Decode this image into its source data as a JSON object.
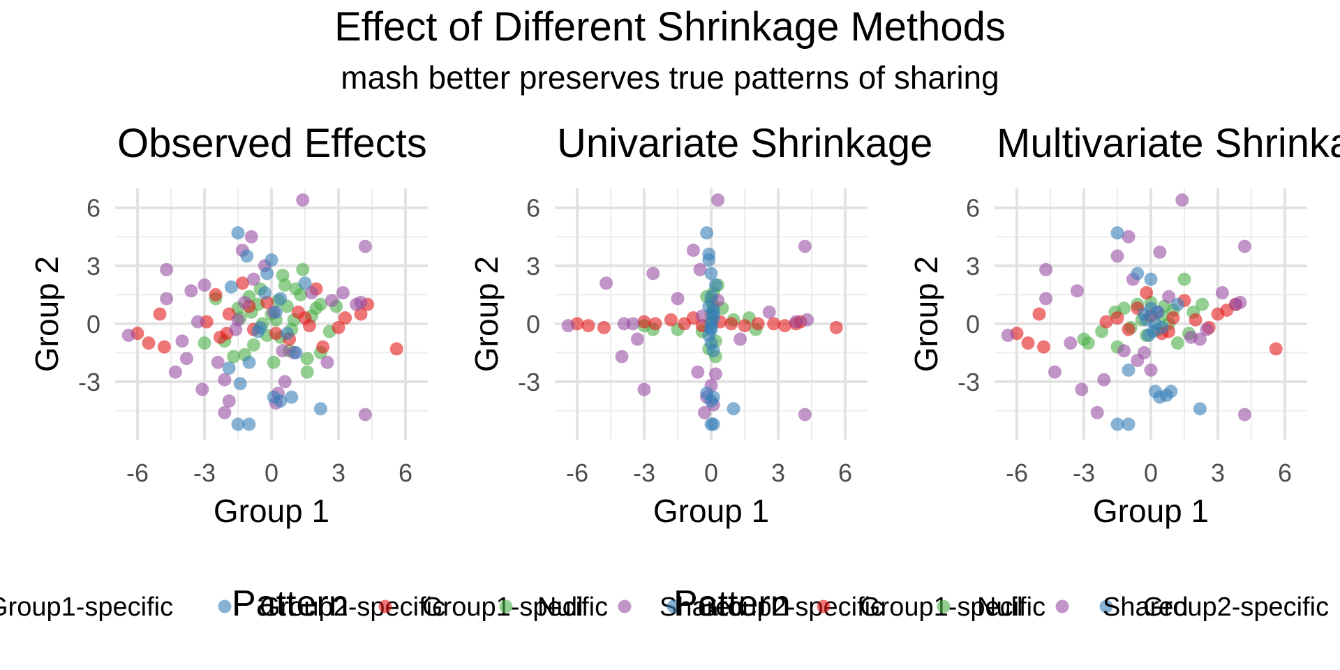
{
  "chart_data": {
    "type": "scatter",
    "title": "Effect of Different Shrinkage Methods",
    "subtitle": "mash better preserves true patterns of sharing",
    "xlabel": "Group 1",
    "ylabel": "Group 2",
    "xlim": [
      -7,
      7
    ],
    "ylim": [
      -6,
      7
    ],
    "xticks": [
      "-6",
      "-3",
      "0",
      "3",
      "6"
    ],
    "yticks": [
      "6",
      "3",
      "0",
      "-3"
    ],
    "grid": true,
    "legend_position": "bottom",
    "legend_title": "Pattern",
    "legend_labels": [
      "Group1-specific",
      "Group2-specific",
      "Null",
      "Shared"
    ],
    "colors": {
      "Group1-specific": "#E41A1C",
      "Group2-specific": "#377EB8",
      "Null": "#4DAF4A",
      "Shared": "#984EA3"
    },
    "panels": [
      {
        "title": "Observed Effects",
        "series": [
          {
            "name": "Group1-specific",
            "x": [
              -6.0,
              -5.5,
              -4.8,
              -5.0,
              -2.9,
              -2.5,
              -2.0,
              -1.9,
              -1.3,
              -0.8,
              0.2,
              1.2,
              1.5,
              1.7,
              2.0,
              2.3,
              3.0,
              3.3,
              4.0,
              4.3,
              5.6,
              -1.0,
              -0.2,
              0.8,
              -2.3
            ],
            "y": [
              -0.5,
              -1.0,
              -1.2,
              0.5,
              0.1,
              1.5,
              -0.5,
              0.5,
              2.1,
              -0.3,
              -0.5,
              0.6,
              0.3,
              -0.1,
              1.8,
              -1.2,
              -0.2,
              0.3,
              0.5,
              1.0,
              -1.3,
              0.9,
              1.1,
              -0.8,
              -0.7
            ]
          },
          {
            "name": "Group2-specific",
            "x": [
              -1.5,
              -1.1,
              -1.5,
              -1.0,
              0.0,
              -0.2,
              1.5,
              -1.8,
              -1.9,
              0.1,
              0.4,
              0.9,
              2.2,
              -1.4,
              -1.0,
              0.4,
              0.7,
              -0.5,
              0.2,
              -0.3,
              1.1,
              -0.6
            ],
            "y": [
              4.7,
              3.5,
              -5.2,
              -5.2,
              3.3,
              2.6,
              2.1,
              1.9,
              -2.3,
              -3.8,
              -4.0,
              -3.8,
              -4.4,
              -3.1,
              -2.0,
              1.3,
              -0.5,
              -0.2,
              0.6,
              1.6,
              -1.5,
              -0.4
            ]
          },
          {
            "name": "Null",
            "x": [
              -0.5,
              0.5,
              1.0,
              1.6,
              2.2,
              0.8,
              -0.9,
              0.3,
              -1.5,
              1.3,
              2.6,
              -2.1,
              -0.2,
              0.7,
              -1.2,
              0.1,
              1.8,
              -0.8,
              2.9,
              -3.0,
              0.6,
              -1.7,
              1.1,
              0.0,
              1.4,
              2.2,
              -0.4,
              0.9,
              -1.0,
              -2.5,
              1.6,
              0.4,
              -0.6,
              2.0,
              0.2,
              -1.4
            ],
            "y": [
              1.8,
              2.5,
              0.2,
              -1.8,
              1.0,
              -1.4,
              0.6,
              1.2,
              0.8,
              1.5,
              -0.4,
              -0.9,
              -0.6,
              0.9,
              -1.6,
              -2.0,
              0.4,
              -1.1,
              0.9,
              -1.0,
              2.0,
              -1.7,
              1.8,
              0.5,
              2.8,
              -1.5,
              0.0,
              -0.3,
              1.4,
              1.3,
              -2.5,
              -0.7,
              1.0,
              0.8,
              0.2,
              0.3
            ]
          },
          {
            "name": "Shared",
            "x": [
              1.4,
              4.2,
              4.2,
              -4.7,
              -4.7,
              -3.3,
              -3.6,
              -3.8,
              -3.1,
              -2.1,
              -2.1,
              -1.5,
              -1.9,
              -0.9,
              0.5,
              -1.2,
              0.1,
              3.2,
              3.8,
              4.0,
              -6.4,
              -4.3,
              -2.4,
              -1.3,
              1.8,
              2.5,
              0.3,
              -0.8,
              0.6,
              1.0,
              -1.6,
              -0.3,
              2.7,
              -3.0,
              -4.0,
              0.2
            ],
            "y": [
              6.4,
              4.0,
              -4.7,
              2.8,
              1.3,
              0.1,
              1.7,
              -1.8,
              -3.4,
              -2.9,
              -4.6,
              0.2,
              -4.0,
              4.5,
              -1.4,
              1.1,
              0.6,
              1.6,
              1.0,
              1.1,
              -0.6,
              -2.5,
              -2.0,
              3.8,
              1.6,
              -2.0,
              -3.6,
              2.3,
              -3.0,
              -1.5,
              -0.3,
              3.0,
              1.2,
              2.0,
              -0.9,
              -4.1
            ]
          }
        ]
      },
      {
        "title": "Univariate Shrinkage",
        "series": [
          {
            "name": "Group1-specific",
            "x": [
              -6.0,
              -5.5,
              -4.8,
              -3.0,
              -2.5,
              -1.8,
              -1.2,
              -0.8,
              -0.4,
              0.4,
              0.9,
              1.5,
              2.1,
              2.8,
              3.3,
              3.8,
              4.0,
              5.6
            ],
            "y": [
              0.0,
              -0.1,
              -0.2,
              0.1,
              0.0,
              0.2,
              0.0,
              0.3,
              -0.1,
              0.1,
              0.0,
              -0.1,
              0.0,
              0.0,
              -0.1,
              0.0,
              0.1,
              -0.2
            ]
          },
          {
            "name": "Group2-specific",
            "x": [
              -0.2,
              -0.1,
              0.0,
              0.1,
              -0.1,
              0.0,
              0.2,
              -0.2,
              0.1,
              0.0,
              1.0,
              0.0,
              -0.1,
              0.1,
              0.0,
              -0.1,
              0.0,
              0.1,
              0.0,
              0.1,
              0.0,
              0.1
            ],
            "y": [
              4.7,
              3.6,
              -5.2,
              -5.2,
              3.3,
              2.6,
              2.0,
              -3.6,
              -3.8,
              -4.0,
              -4.4,
              1.4,
              0.9,
              0.3,
              -0.3,
              -0.6,
              -1.0,
              -1.4,
              0.0,
              0.5,
              -0.2,
              0.7
            ]
          },
          {
            "name": "Null",
            "x": [
              -3.0,
              -2.6,
              -1.5,
              0.0,
              0.1,
              0.3,
              -0.2,
              0.5,
              1.0,
              1.7,
              2.0,
              0.2,
              -0.4,
              0.0,
              0.1,
              -0.1,
              0.2,
              0.0
            ],
            "y": [
              -0.1,
              -0.3,
              -0.3,
              1.2,
              1.6,
              2.0,
              1.4,
              0.8,
              0.2,
              0.3,
              -0.3,
              -0.9,
              -0.4,
              0.5,
              0.9,
              -1.3,
              -1.7,
              0.1
            ]
          },
          {
            "name": "Shared",
            "x": [
              0.3,
              4.2,
              4.2,
              -4.7,
              -4.0,
              -3.9,
              -3.5,
              -3.3,
              -3.0,
              -2.6,
              -1.5,
              -0.8,
              -0.5,
              -0.3,
              0.1,
              -0.2,
              0.2,
              0.0,
              -0.6,
              2.6,
              3.8,
              4.3,
              -6.4,
              -0.4,
              0.3,
              1.3
            ],
            "y": [
              6.4,
              4.0,
              -4.7,
              2.1,
              -1.7,
              0.0,
              0.0,
              -0.8,
              -3.4,
              2.6,
              1.3,
              3.8,
              2.8,
              -4.6,
              -4.2,
              -3.8,
              -2.6,
              -3.2,
              -2.5,
              0.6,
              0.1,
              0.2,
              -0.1,
              0.4,
              1.2,
              -0.8
            ]
          }
        ]
      },
      {
        "title": "Multivariate Shrinkage",
        "series": [
          {
            "name": "Group1-specific",
            "x": [
              -6.0,
              -5.5,
              -4.8,
              -5.0,
              -2.0,
              -1.5,
              -1.0,
              -0.6,
              0.0,
              0.5,
              1.0,
              1.5,
              2.0,
              2.6,
              3.0,
              3.4,
              3.8,
              5.6,
              -0.2,
              0.8
            ],
            "y": [
              -0.5,
              -1.0,
              -1.2,
              0.5,
              0.1,
              0.3,
              -0.3,
              0.8,
              0.4,
              -0.5,
              0.3,
              1.2,
              0.2,
              -0.2,
              0.5,
              0.7,
              1.0,
              -1.3,
              1.6,
              -0.4
            ]
          },
          {
            "name": "Group2-specific",
            "x": [
              -1.5,
              -1.5,
              -1.0,
              -0.6,
              0.0,
              0.2,
              0.4,
              0.7,
              0.9,
              1.2,
              2.2,
              -1.0,
              -0.3,
              0.2,
              0.5,
              0.0,
              -0.2,
              0.1,
              0.3,
              -0.1
            ],
            "y": [
              4.7,
              -5.2,
              -5.2,
              2.6,
              2.3,
              -3.5,
              -3.8,
              -3.7,
              -3.5,
              1.0,
              -4.4,
              -2.4,
              0.5,
              0.0,
              -0.2,
              0.8,
              0.2,
              -0.4,
              0.6,
              -0.6
            ]
          },
          {
            "name": "Null",
            "x": [
              -3.0,
              -2.8,
              -2.2,
              -1.6,
              -1.2,
              -0.6,
              0.0,
              0.6,
              1.0,
              1.5,
              1.9,
              2.3,
              -0.2,
              0.3,
              -0.9,
              0.8,
              1.2,
              -1.5,
              0.5,
              -0.4,
              1.7
            ],
            "y": [
              -0.8,
              -1.0,
              -0.4,
              0.6,
              0.8,
              1.0,
              1.1,
              0.9,
              0.7,
              2.3,
              0.6,
              1.0,
              -0.6,
              -0.3,
              -0.2,
              0.0,
              -1.0,
              -1.2,
              0.4,
              0.2,
              -0.5
            ]
          },
          {
            "name": "Shared",
            "x": [
              1.4,
              4.2,
              4.2,
              -4.7,
              -4.7,
              -3.3,
              -3.1,
              -3.6,
              -4.3,
              -2.1,
              -1.5,
              -1.0,
              -0.8,
              -0.6,
              0.0,
              0.4,
              0.8,
              -6.4,
              3.2,
              3.8,
              4.0,
              -2.4,
              1.8,
              2.5,
              0.3,
              -1.2,
              -0.3,
              2.2
            ],
            "y": [
              6.4,
              4.0,
              -4.7,
              2.8,
              1.3,
              1.7,
              -3.4,
              -1.0,
              -2.5,
              -2.9,
              3.5,
              4.5,
              2.3,
              -1.9,
              -2.4,
              3.7,
              1.4,
              -0.6,
              1.6,
              1.0,
              1.1,
              -4.6,
              -0.7,
              -0.3,
              0.6,
              -1.4,
              -1.5,
              -0.8
            ]
          }
        ]
      }
    ]
  }
}
